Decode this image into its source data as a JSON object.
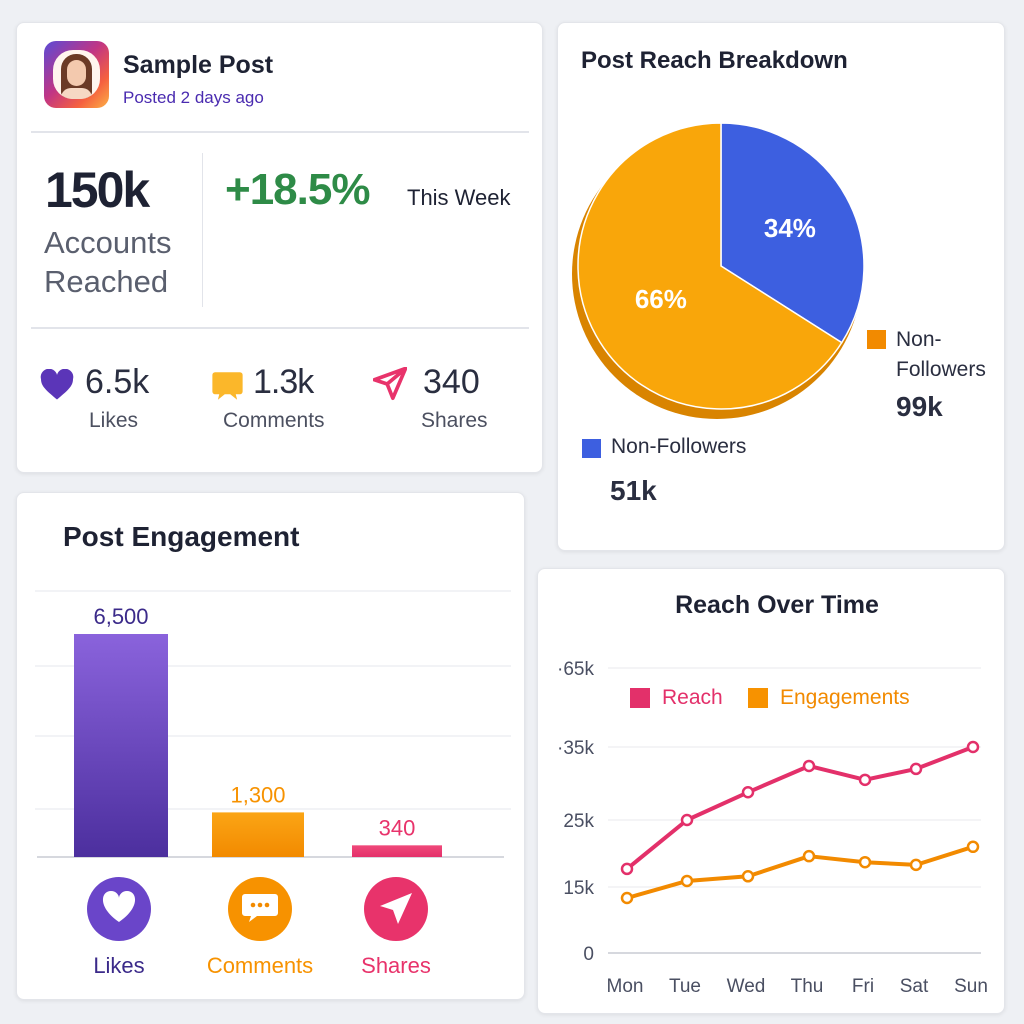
{
  "post": {
    "title": "Sample Post",
    "subtitle": "Posted 2 days ago",
    "reach_value": "150k",
    "reach_label_1": "Accounts",
    "reach_label_2": "Reached",
    "growth": "+18.5%",
    "growth_period": "This Week",
    "stats": [
      {
        "icon": "heart-icon",
        "value": "6.5k",
        "label": "Likes"
      },
      {
        "icon": "comment-icon",
        "value": "1.3k",
        "label": "Comments"
      },
      {
        "icon": "paper-plane-icon",
        "value": "340",
        "label": "Shares"
      }
    ]
  },
  "colors": {
    "purple": "#5b35b8",
    "orange": "#f7a000",
    "pink": "#e8336b",
    "blue": "#3d5fe0",
    "green": "#2e8b47"
  },
  "chart_data": [
    {
      "type": "pie",
      "title": "Post Reach Breakdown",
      "slices": [
        {
          "label": "Non-Followers",
          "value": 34,
          "display": "34%",
          "total": "51k",
          "color": "#3d5fe0"
        },
        {
          "label": "Non-Followers",
          "value": 66,
          "display": "66%",
          "total": "99k",
          "color": "#f7a000"
        }
      ],
      "legend_lines": {
        "orange_1": "Non-",
        "orange_2": "Followers"
      }
    },
    {
      "type": "bar",
      "title": "Post Engagement",
      "categories": [
        "Likes",
        "Comments",
        "Shares"
      ],
      "values": [
        6500,
        1300,
        340
      ],
      "labels": [
        "6,500",
        "1,300",
        "340"
      ],
      "colors": [
        "#6a45c9",
        "#f79200",
        "#e8336b"
      ],
      "icons": [
        "heart-icon",
        "comment-icon",
        "paper-plane-icon"
      ]
    },
    {
      "type": "line",
      "title": "Reach Over Time",
      "categories": [
        "Mon",
        "Tue",
        "Wed",
        "Thu",
        "Fri",
        "Sat",
        "Sun"
      ],
      "y_ticks": [
        {
          "value": 0,
          "label": "0"
        },
        {
          "value": 15000,
          "label": "15k"
        },
        {
          "value": 25000,
          "label": "25k"
        },
        {
          "value": 35000,
          "label": "·35k"
        },
        {
          "value": 65000,
          "label": "·65k"
        }
      ],
      "series": [
        {
          "name": "Reach",
          "color": "#e3306a",
          "values": [
            17700,
            25000,
            28800,
            32400,
            30500,
            32000,
            35000
          ]
        },
        {
          "name": "Engagements",
          "color": "#f28a00",
          "values": [
            12500,
            15900,
            16600,
            19600,
            18700,
            18300,
            21000
          ]
        }
      ],
      "legend": "top"
    }
  ]
}
